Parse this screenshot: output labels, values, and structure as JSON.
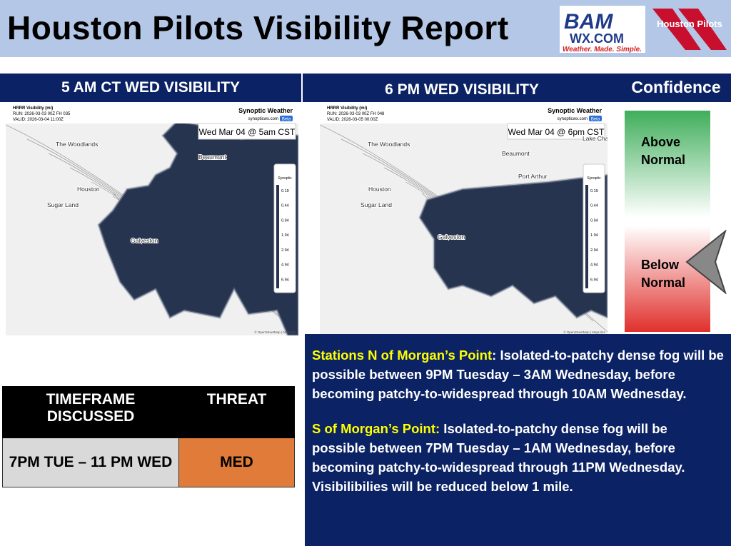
{
  "header": {
    "title": "Houston Pilots Visibility Report",
    "logo_bam": "BAM",
    "logo_wx": "WX.COM",
    "logo_tagline": "Weather. Made. Simple.",
    "logo_pilots": "Houston Pilots"
  },
  "panels": [
    {
      "title": "5 AM CT WED VISIBILITY",
      "map": {
        "product": "HRRR Visibility (mi)",
        "run": "RUN: 2026-03-03 00Z FH 035",
        "valid": "VALID: 2026-03-04 11:00Z",
        "brand": "Synoptic Weather",
        "site": "synopticwx.com",
        "badge": "Beta",
        "stamp": "Wed Mar 04 @ 5am CST",
        "places": [
          "The Woodlands",
          "Houston",
          "Sugar Land",
          "Beaumont",
          "Galveston"
        ],
        "legend_title": "Synoptic",
        "legend": [
          "0.19",
          "0.44",
          "0.94",
          "1.94",
          "2.94",
          "4.94",
          "6.94"
        ],
        "credit": "© OpenStreetMap | MapLibre"
      }
    },
    {
      "title": "6 PM WED VISIBILITY",
      "map": {
        "product": "HRRR Visibility (mi)",
        "run": "RUN: 2026-03-03 00Z FH 048",
        "valid": "VALID: 2026-03-05 00:00Z",
        "brand": "Synoptic Weather",
        "site": "synopticwx.com",
        "badge": "Beta",
        "stamp": "Wed Mar 04 @ 6pm CST",
        "places": [
          "The Woodlands",
          "Beaumont",
          "Port Arthur",
          "Houston",
          "Sugar Land",
          "Galveston",
          "Lake Char"
        ],
        "legend_title": "Synoptic",
        "legend": [
          "0.19",
          "0.44",
          "0.94",
          "1.94",
          "2.94",
          "4.94",
          "6.94"
        ],
        "credit": "© OpenStreetMap | MapLibre"
      }
    }
  ],
  "confidence": {
    "title": "Confidence",
    "above": "Above Normal",
    "below": "Below Normal"
  },
  "table": {
    "header": [
      "TIMEFRAME DISCUSSED",
      "THREAT"
    ],
    "rows": [
      [
        "7PM TUE – 11 PM WED",
        "MED"
      ]
    ]
  },
  "notes": [
    {
      "lead": "Stations N of Morgan’s Point",
      "text": ": Isolated-to-patchy dense fog will be possible between 9PM Tuesday – 3AM Wednesday, before becoming patchy-to-widespread through 10AM Wednesday."
    },
    {
      "lead": "S of Morgan’s Point:",
      "text": " Isolated-to-patchy dense fog will be possible between 7PM Tuesday – 1AM Wednesday, before becoming patchy-to-widespread through 11PM Wednesday. Visibilibilies will be reduced below 1 mile."
    }
  ]
}
